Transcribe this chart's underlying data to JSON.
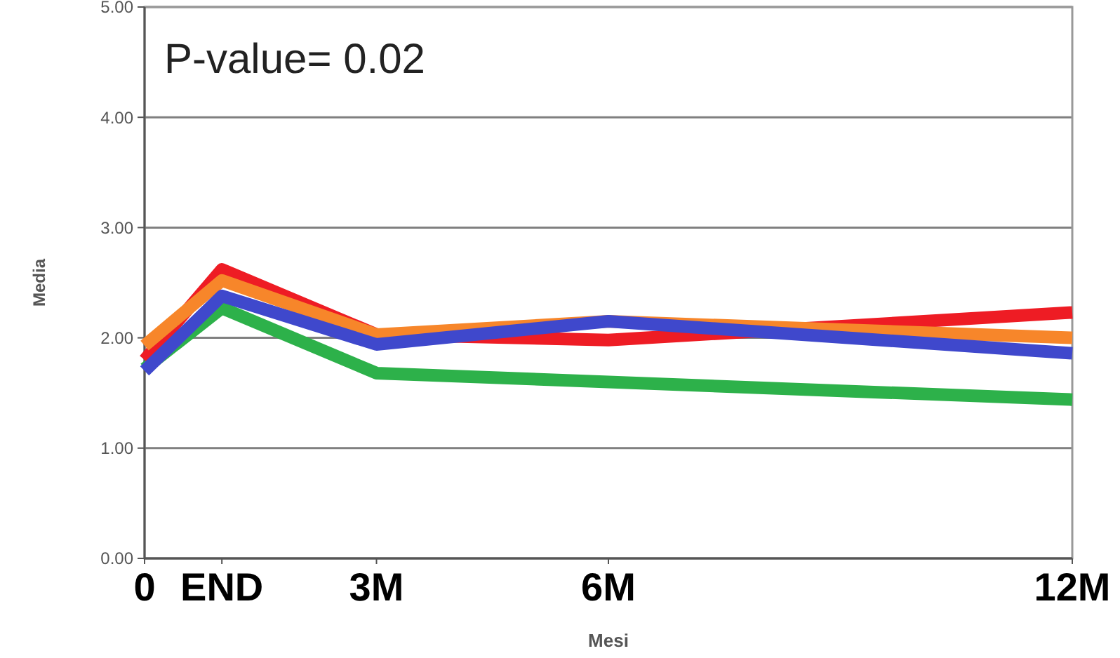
{
  "chart_data": {
    "type": "line",
    "xlabel": "Mesi",
    "ylabel": "Media",
    "annotations": [
      "P-value= 0.02"
    ],
    "x": [
      0,
      1,
      3,
      6,
      12
    ],
    "xlim": [
      0,
      12
    ],
    "xticks": [
      {
        "value": 0,
        "label": "0"
      },
      {
        "value": 1,
        "label": "END"
      },
      {
        "value": 3,
        "label": "3M"
      },
      {
        "value": 6,
        "label": "6M"
      },
      {
        "value": 12,
        "label": "12M"
      }
    ],
    "ylim": [
      0,
      5
    ],
    "yticks": [
      {
        "value": 0,
        "label": "0.00"
      },
      {
        "value": 1,
        "label": "1.00"
      },
      {
        "value": 2,
        "label": "2.00"
      },
      {
        "value": 3,
        "label": "3.00"
      },
      {
        "value": 4,
        "label": "4.00"
      },
      {
        "value": 5,
        "label": "5.00"
      }
    ],
    "grid": "y",
    "marker": "none",
    "line_style": "solid",
    "series": [
      {
        "color": "#2db14a",
        "values": [
          1.72,
          2.27,
          1.68,
          1.6,
          1.44
        ]
      },
      {
        "color": "#ee1c24",
        "values": [
          1.8,
          2.62,
          2.03,
          1.98,
          2.23
        ]
      },
      {
        "color": "#f7862a",
        "values": [
          1.93,
          2.52,
          2.03,
          2.15,
          2.0
        ]
      },
      {
        "color": "#3f48cc",
        "values": [
          1.7,
          2.38,
          1.94,
          2.15,
          1.86
        ]
      }
    ]
  }
}
